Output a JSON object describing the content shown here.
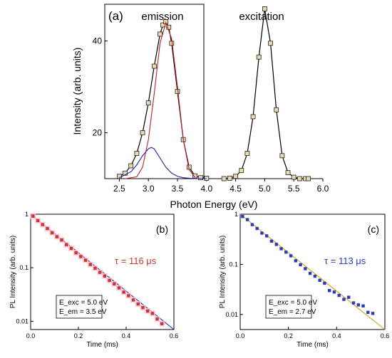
{
  "chart_data": [
    {
      "panel": "(a)",
      "type": "line",
      "xlabel": "Photon Energy (eV)",
      "ylabel": "Intensity (arb. units)",
      "xlim": [
        2.25,
        6.0
      ],
      "ylim": [
        10,
        48
      ],
      "xticks": [
        "2.5",
        "3.0",
        "3.5",
        "4.0",
        "4.5",
        "5.0",
        "5.5",
        "6.0"
      ],
      "yticks": [
        "20",
        "40"
      ],
      "annotations": [
        "emission",
        "excitation"
      ],
      "series": [
        {
          "name": "emission",
          "x": [
            2.5,
            2.6,
            2.7,
            2.8,
            2.9,
            3.0,
            3.1,
            3.2,
            3.25,
            3.3,
            3.35,
            3.4,
            3.5,
            3.6,
            3.7,
            3.8,
            3.9,
            4.0
          ],
          "values": [
            10.5,
            11.2,
            12.8,
            15.5,
            20.0,
            26.5,
            34.5,
            41.5,
            43.5,
            44.2,
            43.0,
            39.5,
            29.0,
            18.5,
            12.5,
            10.6,
            10.2,
            10.1
          ],
          "color": "#000000"
        },
        {
          "name": "",
          "x": [
            2.5,
            2.7,
            2.8,
            2.9,
            3.0,
            3.05,
            3.1,
            3.2,
            3.3,
            3.4,
            3.5,
            3.6,
            3.8,
            4.0
          ],
          "values": [
            10.2,
            11.5,
            13.0,
            15.0,
            16.5,
            16.8,
            16.5,
            14.5,
            12.5,
            11.2,
            10.5,
            10.2,
            10.0,
            10.0
          ],
          "color": "#1f1fa8"
        },
        {
          "name": "",
          "x": [
            2.6,
            2.8,
            2.9,
            3.0,
            3.1,
            3.2,
            3.3,
            3.4,
            3.5,
            3.6,
            3.7,
            3.8
          ],
          "values": [
            10.0,
            10.4,
            12.5,
            18.5,
            28.5,
            39.5,
            44.0,
            40.5,
            30.0,
            18.5,
            12.0,
            10.3
          ],
          "color": "#b22222"
        },
        {
          "name": "excitation",
          "x": [
            4.3,
            4.4,
            4.5,
            4.6,
            4.7,
            4.8,
            4.9,
            5.0,
            5.1,
            5.2,
            5.3,
            5.4,
            5.5,
            5.6,
            5.7,
            5.75
          ],
          "values": [
            10.0,
            10.1,
            10.5,
            11.8,
            15.5,
            23.5,
            36.5,
            47.0,
            39.5,
            25.0,
            15.0,
            11.3,
            10.3,
            10.0,
            10.0,
            10.0
          ],
          "color": "#000000"
        }
      ]
    },
    {
      "panel": "(b)",
      "type": "scatter",
      "xlabel": "Time (ms)",
      "ylabel": "PL Intensity (arb. units)",
      "xlim": [
        0.0,
        0.6
      ],
      "ylim": [
        0.007,
        1.0
      ],
      "scale_y": "log",
      "xticks": [
        "0.0",
        "0.2",
        "0.4",
        "0.6"
      ],
      "yticks": [
        "1",
        "0.1",
        "0.01"
      ],
      "annotation": "τ = 116 μs",
      "legend": [
        "E_exc = 5.0 eV",
        "E_em = 3.5 eV"
      ],
      "tau_us": 116,
      "fit_color": "#2323a8",
      "point_color": "#cc3333",
      "series": [
        {
          "name": "",
          "x": [
            0.01,
            0.03,
            0.05,
            0.07,
            0.09,
            0.11,
            0.13,
            0.15,
            0.17,
            0.19,
            0.21,
            0.23,
            0.25,
            0.27,
            0.29,
            0.31,
            0.33,
            0.35,
            0.37,
            0.39,
            0.41,
            0.43,
            0.45,
            0.47,
            0.49,
            0.51,
            0.53,
            0.55
          ],
          "values": [
            0.92,
            0.76,
            0.64,
            0.54,
            0.45,
            0.38,
            0.33,
            0.27,
            0.23,
            0.19,
            0.162,
            0.138,
            0.115,
            0.098,
            0.082,
            0.07,
            0.058,
            0.05,
            0.042,
            0.035,
            0.03,
            0.025,
            0.021,
            0.018,
            0.0155,
            0.014,
            0.011,
            0.009
          ]
        }
      ]
    },
    {
      "panel": "(c)",
      "type": "scatter",
      "xlabel": "Time (ms)",
      "ylabel": "PL Intensity (arb. units)",
      "xlim": [
        0.0,
        0.6
      ],
      "ylim": [
        0.005,
        1.0
      ],
      "scale_y": "log",
      "xticks": [
        "0.0",
        "0.2",
        "0.4",
        "0.6"
      ],
      "yticks": [
        "1",
        "0.1",
        "0.01"
      ],
      "annotation": "τ = 113 μs",
      "legend": [
        "E_exc = 5.0 eV",
        "E_em = 2.7 eV"
      ],
      "tau_us": 113,
      "fit_color": "#d4a017",
      "point_color": "#2b3cb8",
      "series": [
        {
          "name": "",
          "x": [
            0.01,
            0.03,
            0.05,
            0.07,
            0.09,
            0.11,
            0.13,
            0.15,
            0.17,
            0.19,
            0.21,
            0.23,
            0.25,
            0.27,
            0.29,
            0.31,
            0.33,
            0.35,
            0.37,
            0.39,
            0.41,
            0.43,
            0.45,
            0.47,
            0.49,
            0.51,
            0.53,
            0.55
          ],
          "values": [
            0.9,
            0.78,
            0.62,
            0.52,
            0.42,
            0.37,
            0.29,
            0.25,
            0.205,
            0.175,
            0.148,
            0.118,
            0.098,
            0.082,
            0.066,
            0.058,
            0.048,
            0.042,
            0.03,
            0.028,
            0.024,
            0.02,
            0.022,
            0.017,
            0.0155,
            0.0148,
            0.011,
            0.0105
          ]
        }
      ]
    }
  ]
}
